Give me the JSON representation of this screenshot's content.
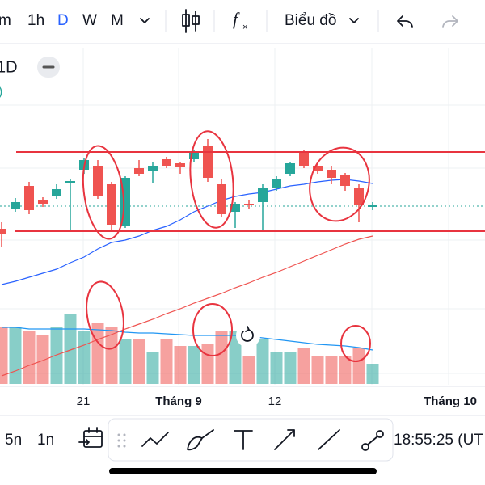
{
  "toolbar": {
    "intervals": [
      "m",
      "1h",
      "D",
      "W",
      "M"
    ],
    "chart_menu": "Biểu đồ"
  },
  "legend": {
    "symbol_suffix": "1D",
    "value_fragment": ")"
  },
  "x_axis_labels": [
    "21",
    "Tháng 9",
    "12",
    "Tháng 10"
  ],
  "bottom_bar": {
    "ranges": [
      "5n",
      "1n"
    ],
    "clock": "18:55:25 (UT"
  },
  "chart_data": {
    "type": "candlestick",
    "up_color": "#26a69a",
    "down_color": "#ef5350",
    "open": [
      187,
      212,
      240,
      222,
      228,
      244,
      260,
      265,
      242,
      190,
      262,
      258,
      273,
      268,
      273,
      290,
      242,
      208,
      218,
      220,
      238,
      255,
      282,
      265,
      260,
      253,
      238,
      214
    ],
    "high": [
      195,
      225,
      245,
      226,
      242,
      248,
      275,
      272,
      245,
      252,
      272,
      270,
      276,
      270,
      285,
      298,
      248,
      220,
      222,
      242,
      252,
      270,
      285,
      270,
      265,
      256,
      242,
      220
    ],
    "low": [
      165,
      208,
      205,
      214,
      224,
      185,
      255,
      224,
      185,
      188,
      252,
      244,
      262,
      255,
      270,
      245,
      202,
      188,
      212,
      185,
      234,
      252,
      262,
      255,
      242,
      234,
      195,
      210
    ],
    "close": [
      180,
      220,
      210,
      218,
      236,
      246,
      272,
      227,
      192,
      250,
      255,
      265,
      265,
      264,
      282,
      250,
      205,
      218,
      216,
      238,
      248,
      268,
      265,
      258,
      250,
      240,
      217,
      217
    ],
    "ylim": [
      0,
      310
    ],
    "ma_fast": {
      "color": "#2962ff",
      "values": [
        118,
        122,
        127,
        132,
        137,
        145,
        152,
        162,
        170,
        173,
        178,
        185,
        190,
        198,
        208,
        215,
        222,
        227,
        230,
        232,
        236,
        240,
        242,
        245,
        247,
        248,
        246,
        243
      ]
    },
    "ma_slow": {
      "color": "#ef5350",
      "values": [
        5,
        11,
        18,
        24,
        31,
        37,
        43,
        50,
        56,
        63,
        69,
        75,
        82,
        88,
        95,
        101,
        107,
        114,
        120,
        127,
        133,
        140,
        147,
        154,
        161,
        168,
        174,
        178
      ]
    },
    "volume": [
      70,
      70,
      65,
      60,
      70,
      87,
      65,
      75,
      70,
      55,
      55,
      40,
      55,
      47,
      47,
      50,
      65,
      65,
      35,
      55,
      40,
      40,
      45,
      35,
      35,
      35,
      45,
      25
    ],
    "volume_lim": [
      0,
      100
    ],
    "volume_ma": {
      "color": "#2196f3",
      "values": [
        70,
        70,
        68,
        68,
        68,
        68,
        68,
        67,
        66,
        64,
        63,
        63,
        62,
        61,
        60,
        60,
        60,
        60,
        59,
        57,
        55,
        53,
        51,
        49,
        48,
        47,
        45,
        42
      ]
    }
  }
}
